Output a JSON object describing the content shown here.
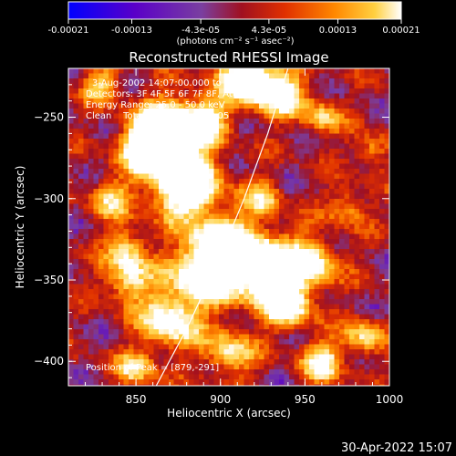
{
  "colorbar": {
    "tick_labels": [
      "-0.00021",
      "-0.00013",
      "-4.3e-05",
      "4.3e-05",
      "0.00013",
      "0.00021"
    ],
    "tick_values": [
      -0.00021,
      -0.00013,
      -4.3e-05,
      4.3e-05,
      0.00013,
      0.00021
    ],
    "range": [
      -0.00021,
      0.00021
    ],
    "units": "(photons cm⁻² s⁻¹ asec⁻²)"
  },
  "timestamp": "30-Apr-2022 15:07",
  "chart_data": {
    "type": "heatmap",
    "title": "Reconstructed RHESSI Image",
    "xlabel": "Heliocentric X (arcsec)",
    "ylabel": "Heliocentric Y (arcsec)",
    "xlim": [
      810,
      1000
    ],
    "ylim": [
      -415,
      -220
    ],
    "x_ticks": [
      850,
      900,
      950,
      1000
    ],
    "x_tick_labels": [
      "850",
      "900",
      "950",
      "1000"
    ],
    "y_ticks": [
      -400,
      -350,
      -300,
      -250
    ],
    "y_tick_labels": [
      "−400",
      "−350",
      "−300",
      "−250"
    ],
    "colormap": [
      "#0000ff",
      "#5a00c8",
      "#7a3fa0",
      "#a01020",
      "#e03000",
      "#ff8800",
      "#ffd040",
      "#ffffff"
    ],
    "annotations": [
      "3-Aug-2002 14:07:00.000 to 14:12:44.000",
      "Detectors: 3F 4F 5F 6F 7F 8F, Att 0",
      "Energy Range: 25.0 - 50.0 keV",
      "Clean    Total counts: 3.95E+05"
    ],
    "peak_label": "Position of Peak = [879,-291]",
    "peak": [
      879,
      -291
    ],
    "limb_curve": [
      [
        862,
        -415
      ],
      [
        880,
        -380
      ],
      [
        898,
        -340
      ],
      [
        914,
        -300
      ],
      [
        928,
        -260
      ],
      [
        940,
        -220
      ]
    ]
  }
}
